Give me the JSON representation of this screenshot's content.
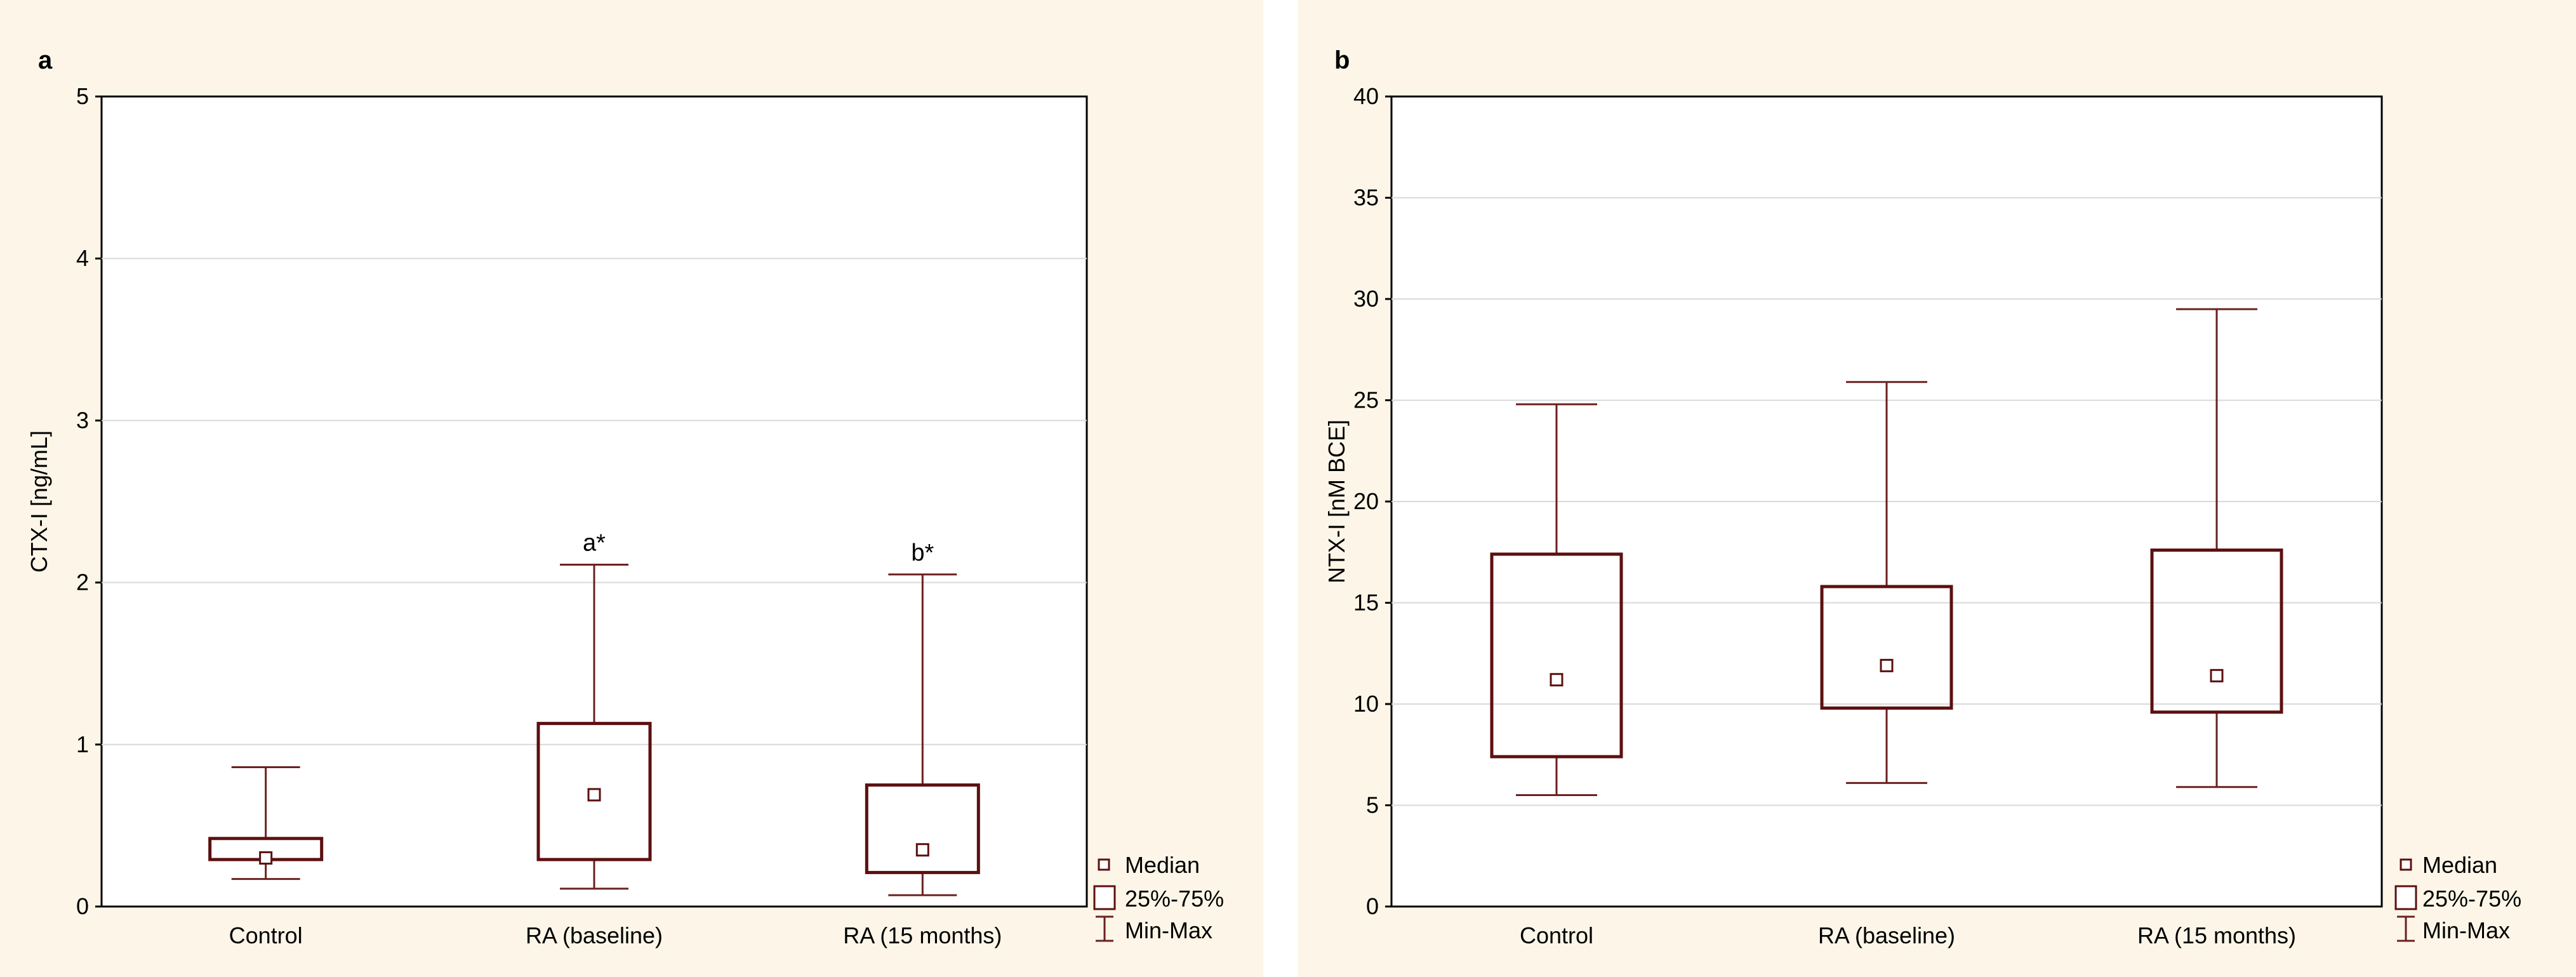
{
  "colors": {
    "panel_background": "#fdf6e8",
    "box_stroke": "#5c1010",
    "grid": "#d9d9d9"
  },
  "chart_data": [
    {
      "type": "box",
      "panel_label": "a",
      "title": "",
      "xlabel": "",
      "ylabel": "CTX-I [ng/mL]",
      "ylim": [
        0,
        5
      ],
      "yticks": [
        0,
        1,
        2,
        3,
        4,
        5
      ],
      "grid": true,
      "categories": [
        "Control",
        "RA (baseline)",
        "RA (15 months)"
      ],
      "series": [
        {
          "name": "Control",
          "min": 0.17,
          "q1": 0.29,
          "median": 0.3,
          "q3": 0.42,
          "max": 0.86,
          "annotation": ""
        },
        {
          "name": "RA (baseline)",
          "min": 0.11,
          "q1": 0.29,
          "median": 0.69,
          "q3": 1.13,
          "max": 2.11,
          "annotation": "a*"
        },
        {
          "name": "RA (15 months)",
          "min": 0.07,
          "q1": 0.21,
          "median": 0.35,
          "q3": 0.75,
          "max": 2.05,
          "annotation": "b*"
        }
      ],
      "legend": {
        "placement": "right-bottom",
        "entries": [
          "Median",
          "25%-75%",
          "Min-Max"
        ]
      }
    },
    {
      "type": "box",
      "panel_label": "b",
      "title": "",
      "xlabel": "",
      "ylabel": "NTX-I [nM BCE]",
      "ylim": [
        0,
        40
      ],
      "yticks": [
        0,
        5,
        10,
        15,
        20,
        25,
        30,
        35,
        40
      ],
      "grid": true,
      "categories": [
        "Control",
        "RA (baseline)",
        "RA (15 months)"
      ],
      "series": [
        {
          "name": "Control",
          "min": 5.5,
          "q1": 7.4,
          "median": 11.2,
          "q3": 17.4,
          "max": 24.8,
          "annotation": ""
        },
        {
          "name": "RA (baseline)",
          "min": 6.1,
          "q1": 9.8,
          "median": 11.9,
          "q3": 15.8,
          "max": 25.9,
          "annotation": ""
        },
        {
          "name": "RA (15 months)",
          "min": 5.9,
          "q1": 9.6,
          "median": 11.4,
          "q3": 17.6,
          "max": 29.5,
          "annotation": ""
        }
      ],
      "legend": {
        "placement": "right-bottom",
        "entries": [
          "Median",
          "25%-75%",
          "Min-Max"
        ]
      }
    }
  ]
}
